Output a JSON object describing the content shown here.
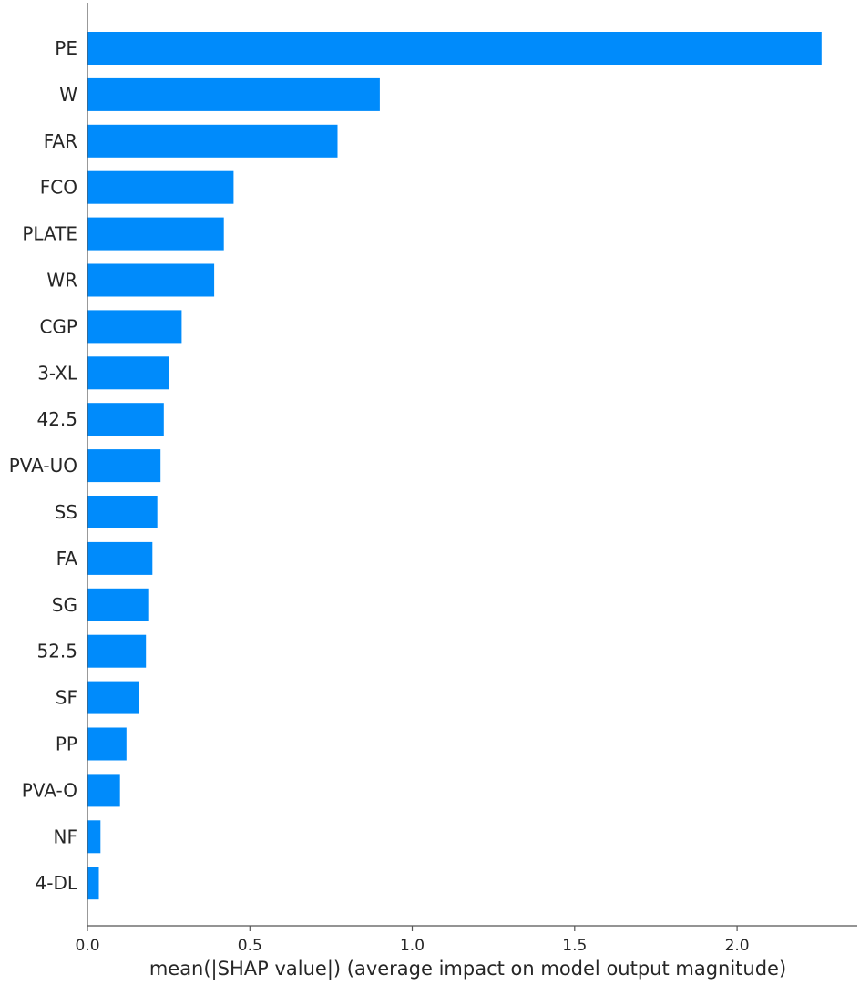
{
  "chart_data": {
    "type": "bar",
    "orientation": "horizontal",
    "categories": [
      "PE",
      "W",
      "FAR",
      "FCO",
      "PLATE",
      "WR",
      "CGP",
      "3-XL",
      "42.5",
      "PVA-UO",
      "SS",
      "FA",
      "SG",
      "52.5",
      "SF",
      "PP",
      "PVA-O",
      "NF",
      "4-DL"
    ],
    "values": [
      2.26,
      0.9,
      0.77,
      0.45,
      0.42,
      0.39,
      0.29,
      0.25,
      0.235,
      0.225,
      0.215,
      0.2,
      0.19,
      0.18,
      0.16,
      0.12,
      0.1,
      0.04,
      0.035
    ],
    "xlabel": "mean(|SHAP value|) (average impact on model output magnitude)",
    "ylabel": "",
    "xlim": [
      0,
      2.37
    ],
    "x_ticks": [
      0.0,
      0.5,
      1.0,
      1.5,
      2.0
    ],
    "x_tick_labels": [
      "0.0",
      "0.5",
      "1.0",
      "1.5",
      "2.0"
    ],
    "bar_color": "#008bfb",
    "axis_color": "#555555",
    "grid": false,
    "legend": "none"
  }
}
